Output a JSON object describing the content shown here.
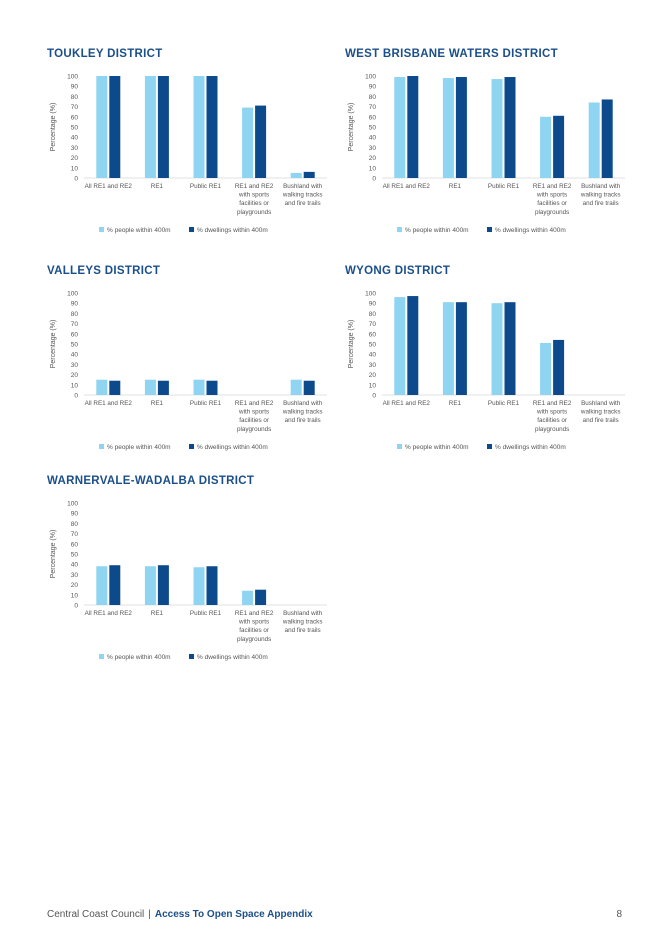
{
  "colors": {
    "light": "#8fd4f0",
    "dark": "#0c4a8c",
    "title": "#1b4f8a",
    "axis_text": "#555555"
  },
  "footer": {
    "organisation": "Central Coast Council",
    "separator": "|",
    "document": "Access To Open Space Appendix",
    "page": "8"
  },
  "chart_data": [
    {
      "type": "bar",
      "title": "TOUKLEY DISTRICT",
      "ylabel": "Percentage (%)",
      "ylim": [
        0,
        100
      ],
      "yticks": [
        "0",
        "10",
        "20",
        "30",
        "40",
        "50",
        "60",
        "70",
        "80",
        "90",
        "100"
      ],
      "categories": [
        [
          "All RE1 and RE2"
        ],
        [
          "RE1"
        ],
        [
          "Public RE1"
        ],
        [
          "RE1 and RE2",
          "with sports",
          "facilities or",
          "playgrounds"
        ],
        [
          "Bushland with",
          "walking tracks",
          "and fire trails"
        ]
      ],
      "series": [
        {
          "name": "% people within 400m",
          "values": [
            100,
            100,
            100,
            69,
            5
          ]
        },
        {
          "name": "% dwellings within 400m",
          "values": [
            100,
            100,
            100,
            71,
            6
          ]
        }
      ],
      "legend": "bottom"
    },
    {
      "type": "bar",
      "title": "WEST BRISBANE WATERS DISTRICT",
      "ylabel": "Percentage (%)",
      "ylim": [
        0,
        100
      ],
      "yticks": [
        "0",
        "10",
        "20",
        "30",
        "40",
        "50",
        "60",
        "70",
        "80",
        "90",
        "100"
      ],
      "categories": [
        [
          "All RE1 and RE2"
        ],
        [
          "RE1"
        ],
        [
          "Public RE1"
        ],
        [
          "RE1 and RE2",
          "with sports",
          "facilities or",
          "playgrounds"
        ],
        [
          "Bushland with",
          "walking tracks",
          "and fire trails"
        ]
      ],
      "series": [
        {
          "name": "% people within 400m",
          "values": [
            99,
            98,
            97,
            60,
            74
          ]
        },
        {
          "name": "% dwellings within 400m",
          "values": [
            100,
            99,
            99,
            61,
            77
          ]
        }
      ],
      "legend": "bottom"
    },
    {
      "type": "bar",
      "title": "VALLEYS DISTRICT",
      "ylabel": "Percentage (%)",
      "ylim": [
        0,
        100
      ],
      "yticks": [
        "0",
        "10",
        "20",
        "30",
        "40",
        "50",
        "60",
        "70",
        "80",
        "90",
        "100"
      ],
      "categories": [
        [
          "All RE1 and RE2"
        ],
        [
          "RE1"
        ],
        [
          "Public RE1"
        ],
        [
          "RE1 and RE2",
          "with sports",
          "facilities or",
          "playgrounds"
        ],
        [
          "Bushland with",
          "walking tracks",
          "and fire trails"
        ]
      ],
      "series": [
        {
          "name": "% people within 400m",
          "values": [
            15,
            15,
            15,
            0,
            15
          ]
        },
        {
          "name": "% dwellings within 400m",
          "values": [
            14,
            14,
            14,
            0,
            14
          ]
        }
      ],
      "legend": "bottom"
    },
    {
      "type": "bar",
      "title": "WYONG DISTRICT",
      "ylabel": "Percentage (%)",
      "ylim": [
        0,
        100
      ],
      "yticks": [
        "0",
        "10",
        "20",
        "30",
        "40",
        "50",
        "60",
        "70",
        "80",
        "90",
        "100"
      ],
      "categories": [
        [
          "All RE1 and RE2"
        ],
        [
          "RE1"
        ],
        [
          "Public RE1"
        ],
        [
          "RE1 and RE2",
          "with sports",
          "facilities or",
          "playgrounds"
        ],
        [
          "Bushland with",
          "walking tracks",
          "and fire trails"
        ]
      ],
      "series": [
        {
          "name": "% people within 400m",
          "values": [
            96,
            91,
            90,
            51,
            0
          ]
        },
        {
          "name": "% dwellings within 400m",
          "values": [
            97,
            91,
            91,
            54,
            0
          ]
        }
      ],
      "legend": "bottom"
    },
    {
      "type": "bar",
      "title": "WARNERVALE-WADALBA DISTRICT",
      "ylabel": "Percentage (%)",
      "ylim": [
        0,
        100
      ],
      "yticks": [
        "0",
        "10",
        "20",
        "30",
        "40",
        "50",
        "60",
        "70",
        "80",
        "90",
        "100"
      ],
      "categories": [
        [
          "All RE1 and RE2"
        ],
        [
          "RE1"
        ],
        [
          "Public RE1"
        ],
        [
          "RE1 and RE2",
          "with sports",
          "facilities or",
          "playgrounds"
        ],
        [
          "Bushland with",
          "walking tracks",
          "and fire trails"
        ]
      ],
      "series": [
        {
          "name": "% people within 400m",
          "values": [
            38,
            38,
            37,
            14,
            0
          ]
        },
        {
          "name": "% dwellings within 400m",
          "values": [
            39,
            39,
            38,
            15,
            0
          ]
        }
      ],
      "legend": "bottom"
    }
  ]
}
